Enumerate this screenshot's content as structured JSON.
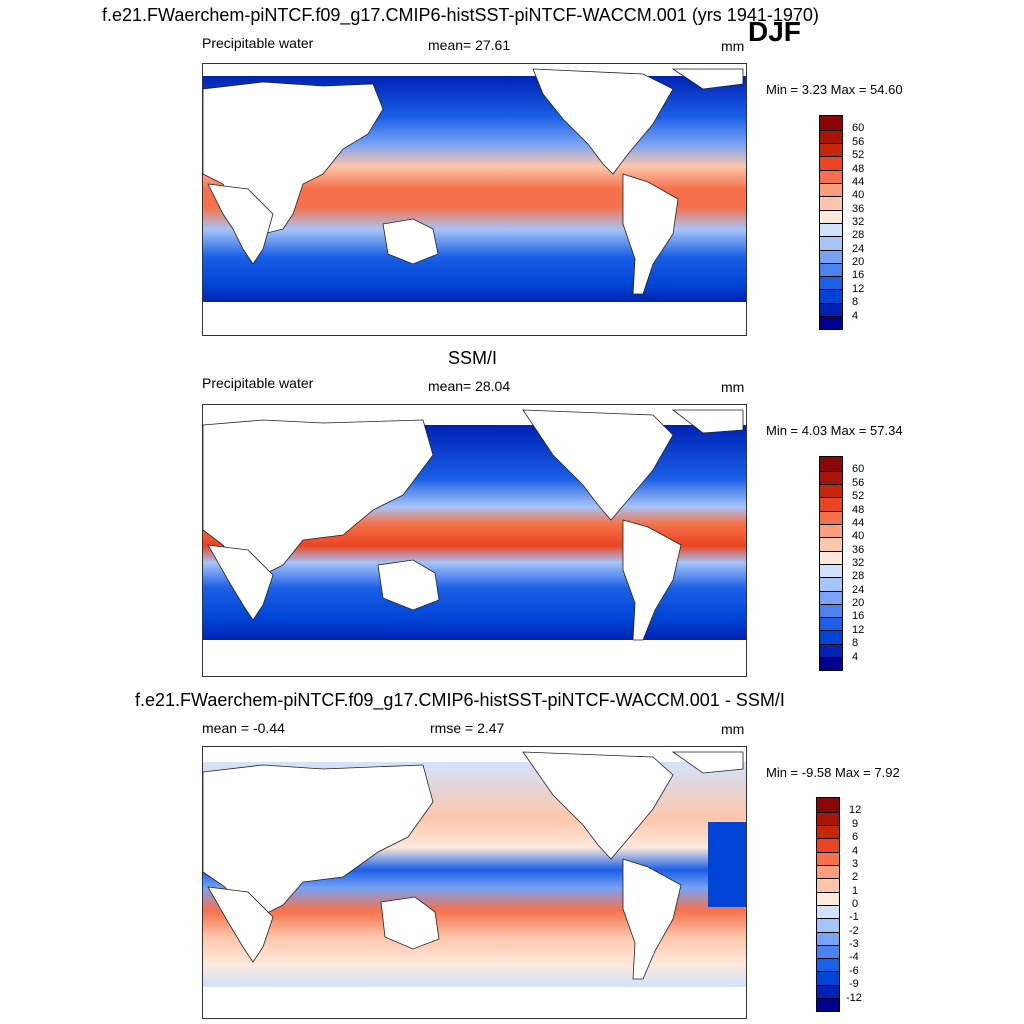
{
  "season": "DJF",
  "units": "mm",
  "panels": [
    {
      "title": "f.e21.FWaerchem-piNTCF.f09_g17.CMIP6-histSST-piNTCF-WACCM.001 (yrs 1941-1970)",
      "left_label": "Precipitable water",
      "center_label": "mean=  27.61",
      "right_label": "mm",
      "minmax": "Min =   3.23 Max =  54.60"
    },
    {
      "title": "SSM/I",
      "left_label": "Precipitable water",
      "center_label": "mean=  28.04",
      "right_label": "mm",
      "minmax": "Min =   4.03 Max =  57.34"
    },
    {
      "title": "f.e21.FWaerchem-piNTCF.f09_g17.CMIP6-histSST-piNTCF-WACCM.001 - SSM/I",
      "left_label": "mean =  -0.44",
      "center_label": "rmse =   2.47",
      "right_label": "mm",
      "minmax": "Min =  -9.58 Max =   7.92"
    }
  ],
  "chart_data": [
    {
      "type": "heatmap",
      "title": "f.e21.FWaerchem-piNTCF.f09_g17.CMIP6-histSST-piNTCF-WACCM.001 (yrs 1941-1970)",
      "variable": "Precipitable water",
      "units": "mm",
      "mean": 27.61,
      "min": 3.23,
      "max": 54.6,
      "colorbar_levels": [
        4,
        8,
        12,
        16,
        20,
        24,
        28,
        32,
        36,
        40,
        44,
        48,
        52,
        56,
        60
      ],
      "colorbar_colors": [
        "#00008f",
        "#0022b4",
        "#0045d6",
        "#1a5fe6",
        "#4a82f0",
        "#77a2f5",
        "#a6c4f8",
        "#d1e3fb",
        "#fde9dc",
        "#fcc6ab",
        "#fb9e7a",
        "#f6714b",
        "#ea4522",
        "#c82608",
        "#a8130a",
        "#8a0707"
      ]
    },
    {
      "type": "heatmap",
      "title": "SSM/I",
      "variable": "Precipitable water",
      "units": "mm",
      "mean": 28.04,
      "min": 4.03,
      "max": 57.34,
      "colorbar_levels": [
        4,
        8,
        12,
        16,
        20,
        24,
        28,
        32,
        36,
        40,
        44,
        48,
        52,
        56,
        60
      ],
      "colorbar_colors": [
        "#00008f",
        "#0022b4",
        "#0045d6",
        "#1a5fe6",
        "#4a82f0",
        "#77a2f5",
        "#a6c4f8",
        "#d1e3fb",
        "#fde9dc",
        "#fcc6ab",
        "#fb9e7a",
        "#f6714b",
        "#ea4522",
        "#c82608",
        "#a8130a",
        "#8a0707"
      ]
    },
    {
      "type": "heatmap",
      "title": "f.e21.FWaerchem-piNTCF.f09_g17.CMIP6-histSST-piNTCF-WACCM.001 - SSM/I",
      "units": "mm",
      "mean": -0.44,
      "rmse": 2.47,
      "min": -9.58,
      "max": 7.92,
      "colorbar_levels": [
        -12,
        -9,
        -6,
        -4,
        -3,
        -2,
        -1,
        0,
        1,
        2,
        3,
        4,
        6,
        9,
        12
      ],
      "colorbar_colors": [
        "#00008f",
        "#0022b4",
        "#0045d6",
        "#1a5fe6",
        "#4a82f0",
        "#77a2f5",
        "#a6c4f8",
        "#d1e3fb",
        "#fde9dc",
        "#fcc6ab",
        "#fb9e7a",
        "#f6714b",
        "#ea4522",
        "#c82608",
        "#a8130a",
        "#8a0707"
      ]
    }
  ]
}
